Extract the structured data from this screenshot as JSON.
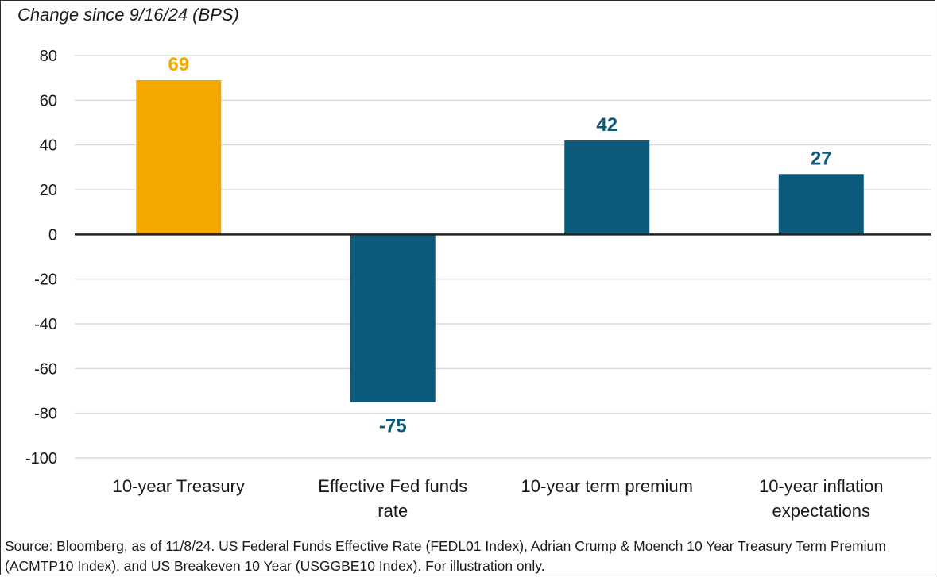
{
  "chart_data": {
    "type": "bar",
    "title": "",
    "subtitle": "Change since 9/16/24 (BPS)",
    "xlabel": "",
    "ylabel": "",
    "categories": [
      "10-year Treasury",
      "Effective Fed funds rate",
      "10-year term premium",
      "10-year inflation expectations"
    ],
    "category_lines": [
      [
        "10-year Treasury"
      ],
      [
        "Effective Fed funds",
        "rate"
      ],
      [
        "10-year term premium"
      ],
      [
        "10-year inflation",
        "expectations"
      ]
    ],
    "values": [
      69,
      -75,
      42,
      27
    ],
    "data_labels": [
      "69",
      "-75",
      "42",
      "27"
    ],
    "bar_colors": [
      "#f5a800",
      "#0b5a7b",
      "#0b5a7b",
      "#0b5a7b"
    ],
    "label_colors": [
      "#f5a800",
      "#0b5a7b",
      "#0b5a7b",
      "#0b5a7b"
    ],
    "ylim": [
      -100,
      80
    ],
    "yticks": [
      80,
      60,
      40,
      20,
      0,
      -20,
      -40,
      -60,
      -80,
      -100
    ],
    "grid": true,
    "legend": "none"
  },
  "source_note": "Source: Bloomberg, as of 11/8/24. US Federal Funds Effective Rate (FEDL01 Index), Adrian Crump & Moench 10 Year Treasury Term Premium (ACMTP10 Index), and US Breakeven 10 Year (USGGBE10 Index). For illustration only."
}
